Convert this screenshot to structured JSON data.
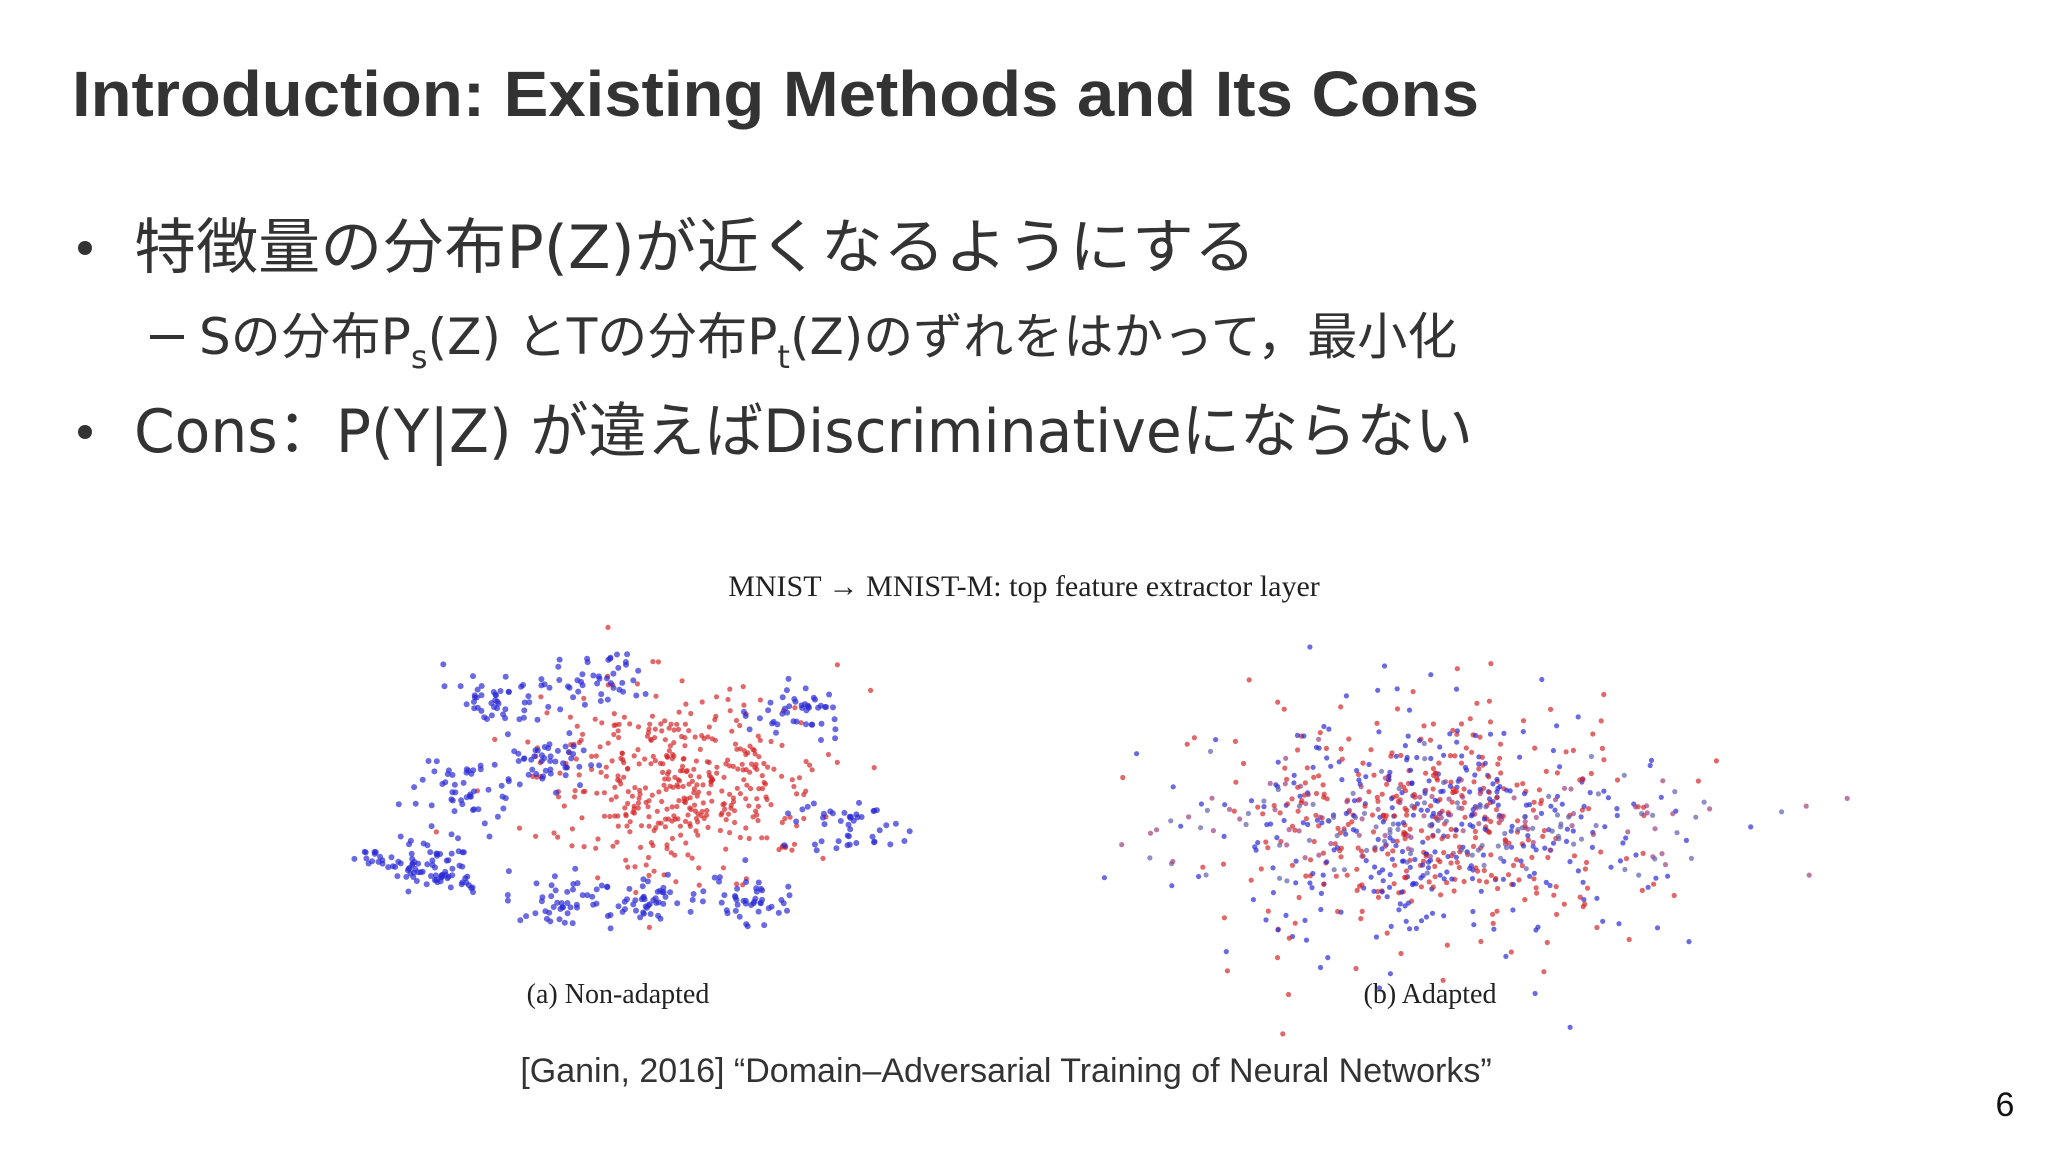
{
  "title": "Introduction: Existing Methods and Its Cons",
  "bullets": [
    {
      "text": "特徴量の分布P(Z)が近くなるようにする"
    },
    {
      "segments": [
        "Sの分布P",
        "s",
        "(Z) とTの分布P",
        "t",
        "(Z)のずれをはかって，最小化"
      ]
    },
    {
      "text": "Cons：P(Y|Z) が違えばDiscriminativeにならない"
    }
  ],
  "figure": {
    "title": "MNIST → MNIST-M: top feature extractor layer",
    "captions": [
      "(a) Non-adapted",
      "(b) Adapted"
    ]
  },
  "citation": "[Ganin, 2016] “Domain–Adversarial Training of Neural Networks”",
  "page_number": "6"
}
